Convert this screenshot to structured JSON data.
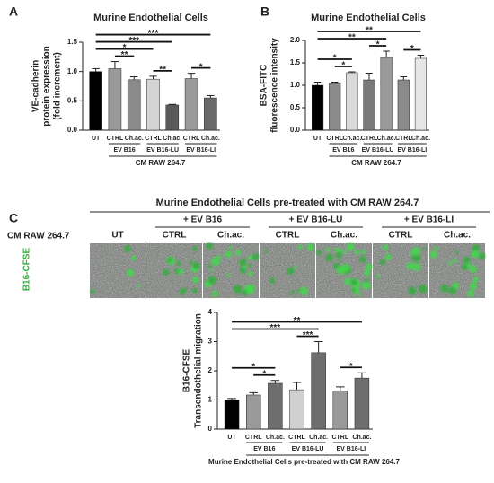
{
  "chart_data": [
    {
      "type": "bar",
      "panel": "A",
      "title": "Murine Endothelial Cells",
      "ylabel_lines": [
        "VE-cadherin",
        "protein expression",
        "(fold increment)"
      ],
      "categories": [
        "UT",
        "CTRL",
        "Ch.ac.",
        "CTRL",
        "Ch.ac.",
        "CTRL",
        "Ch.ac."
      ],
      "group": [
        null,
        "EV B16",
        "EV B16",
        "EV B16-LU",
        "EV B16-LU",
        "EV B16-LI",
        "EV B16-LI"
      ],
      "xlabel": "CM RAW 264.7",
      "values": [
        1.0,
        1.05,
        0.86,
        0.87,
        0.43,
        0.88,
        0.55
      ],
      "errors": [
        0.05,
        0.12,
        0.05,
        0.05,
        0.01,
        0.09,
        0.04
      ],
      "colors": [
        "#000000",
        "#9a9a9a",
        "#8a8a8a",
        "#d4d4d4",
        "#5a5a5a",
        "#9a9a9a",
        "#6a6a6a"
      ],
      "ylim": [
        0,
        1.5
      ],
      "yticks": [
        {
          "value": 0,
          "label": "0.0"
        },
        0.5,
        {
          "value": 1,
          "label": "1.0"
        },
        1.5
      ],
      "significance": [
        {
          "from": 1,
          "to": 2,
          "label": "**"
        },
        {
          "from": 3,
          "to": 4,
          "label": "**"
        },
        {
          "from": 5,
          "to": 6,
          "label": "*"
        },
        {
          "from": 0,
          "to": 3,
          "label": "*"
        },
        {
          "from": 0,
          "to": 4,
          "label": "***"
        },
        {
          "from": 0,
          "to": 6,
          "label": "***"
        }
      ]
    },
    {
      "type": "bar",
      "panel": "B",
      "title": "Murine Endothelial Cells",
      "ylabel_lines": [
        "BSA-FITC",
        "fluorescence intensity"
      ],
      "categories": [
        "UT",
        "CTRL",
        "Ch.ac.",
        "CTRL",
        "Ch.ac.",
        "CTRL",
        "Ch.ac."
      ],
      "group": [
        null,
        "EV B16",
        "EV B16",
        "EV B16-LU",
        "EV B16-LU",
        "EV B16-LI",
        "EV B16-LI"
      ],
      "xlabel": "CM RAW 264.7",
      "values": [
        1.0,
        1.04,
        1.28,
        1.12,
        1.62,
        1.12,
        1.6
      ],
      "errors": [
        0.07,
        0.03,
        0.02,
        0.15,
        0.14,
        0.07,
        0.07
      ],
      "colors": [
        "#000000",
        "#8a8a8a",
        "#d9d9d9",
        "#7a7a7a",
        "#9a9a9a",
        "#8a8a8a",
        "#e6e6e6"
      ],
      "ylim": [
        0,
        2.0
      ],
      "yticks": [
        {
          "value": 0,
          "label": "0.0"
        },
        0.5,
        {
          "value": 1,
          "label": "1.0"
        },
        1.5,
        {
          "value": 2,
          "label": "2.0"
        }
      ],
      "significance": [
        {
          "from": 1,
          "to": 2,
          "label": "*"
        },
        {
          "from": 0,
          "to": 2,
          "label": "*"
        },
        {
          "from": 3,
          "to": 4,
          "label": "*"
        },
        {
          "from": 5,
          "to": 6,
          "label": "*"
        },
        {
          "from": 0,
          "to": 4,
          "label": "**"
        },
        {
          "from": 0,
          "to": 6,
          "label": "**"
        }
      ]
    },
    {
      "type": "bar",
      "ylabel_lines": [
        "B16-CFSE",
        "Transendothelial migration"
      ],
      "categories": [
        "UT",
        "CTRL",
        "Ch.ac.",
        "CTRL",
        "Ch.ac.",
        "CTRL",
        "Ch.ac."
      ],
      "group": [
        null,
        "EV B16",
        "EV B16",
        "EV B16-LU",
        "EV B16-LU",
        "EV B16-LI",
        "EV B16-LI"
      ],
      "xlabel": "Murine Endothelial Cells pre-treated with CM RAW 264.7",
      "values": [
        1.0,
        1.17,
        1.57,
        1.35,
        2.62,
        1.3,
        1.75
      ],
      "errors": [
        0.05,
        0.08,
        0.1,
        0.25,
        0.38,
        0.15,
        0.18
      ],
      "colors": [
        "#000000",
        "#9a9a9a",
        "#6e6e6e",
        "#cfcfcf",
        "#6e6e6e",
        "#9a9a9a",
        "#6e6e6e"
      ],
      "ylim": [
        0,
        4
      ],
      "yticks": [
        0,
        1,
        2,
        3,
        4
      ],
      "significance": [
        {
          "from": 1,
          "to": 2,
          "label": "*"
        },
        {
          "from": 0,
          "to": 2,
          "label": "*"
        },
        {
          "from": 3,
          "to": 4,
          "label": "***"
        },
        {
          "from": 5,
          "to": 6,
          "label": "*"
        },
        {
          "from": 0,
          "to": 4,
          "label": "***"
        },
        {
          "from": 0,
          "to": 6,
          "label": "**"
        }
      ]
    }
  ],
  "micrograph": {
    "panel": "C",
    "header": "Murine Endothelial Cells pre-treated with CM RAW 264.7",
    "row_label": "CM RAW 264.7",
    "stain_label": "B16-CFSE",
    "columns": [
      "UT",
      "CTRL",
      "Ch.ac.",
      "CTRL",
      "Ch.ac.",
      "CTRL",
      "Ch.ac."
    ],
    "groups": [
      "+ EV B16",
      "+ EV B16-LU",
      "+ EV B16-LI"
    ]
  }
}
